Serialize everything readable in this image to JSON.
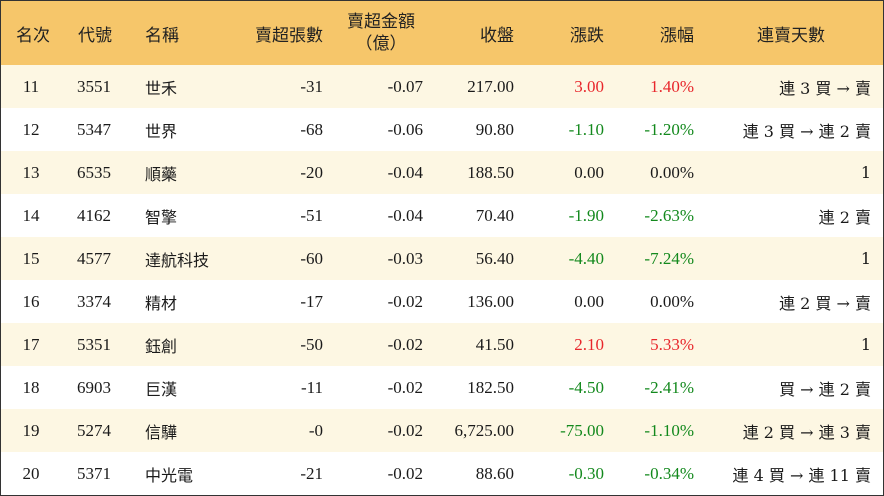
{
  "header": {
    "rank": "名次",
    "code": "代號",
    "name": "名稱",
    "sell_lots": "賣超張數",
    "sell_amount_line1": "賣超金額",
    "sell_amount_line2": "（億）",
    "close": "收盤",
    "change": "漲跌",
    "change_pct": "漲幅",
    "consecutive_days": "連賣天數"
  },
  "rows": [
    {
      "rank": "11",
      "code": "3551",
      "name": "世禾",
      "sell_lots": "-31",
      "sell_amount": "-0.07",
      "close": "217.00",
      "change": "3.00",
      "change_pct": "1.40%",
      "direction": "up",
      "consecutive": "連 3 買 → 賣"
    },
    {
      "rank": "12",
      "code": "5347",
      "name": "世界",
      "sell_lots": "-68",
      "sell_amount": "-0.06",
      "close": "90.80",
      "change": "-1.10",
      "change_pct": "-1.20%",
      "direction": "down",
      "consecutive": "連 3 買 → 連 2 賣"
    },
    {
      "rank": "13",
      "code": "6535",
      "name": "順藥",
      "sell_lots": "-20",
      "sell_amount": "-0.04",
      "close": "188.50",
      "change": "0.00",
      "change_pct": "0.00%",
      "direction": "flat",
      "consecutive": "1"
    },
    {
      "rank": "14",
      "code": "4162",
      "name": "智擎",
      "sell_lots": "-51",
      "sell_amount": "-0.04",
      "close": "70.40",
      "change": "-1.90",
      "change_pct": "-2.63%",
      "direction": "down",
      "consecutive": "連 2 賣"
    },
    {
      "rank": "15",
      "code": "4577",
      "name": "達航科技",
      "sell_lots": "-60",
      "sell_amount": "-0.03",
      "close": "56.40",
      "change": "-4.40",
      "change_pct": "-7.24%",
      "direction": "down",
      "consecutive": "1"
    },
    {
      "rank": "16",
      "code": "3374",
      "name": "精材",
      "sell_lots": "-17",
      "sell_amount": "-0.02",
      "close": "136.00",
      "change": "0.00",
      "change_pct": "0.00%",
      "direction": "flat",
      "consecutive": "連 2 買 → 賣"
    },
    {
      "rank": "17",
      "code": "5351",
      "name": "鈺創",
      "sell_lots": "-50",
      "sell_amount": "-0.02",
      "close": "41.50",
      "change": "2.10",
      "change_pct": "5.33%",
      "direction": "up",
      "consecutive": "1"
    },
    {
      "rank": "18",
      "code": "6903",
      "name": "巨漢",
      "sell_lots": "-11",
      "sell_amount": "-0.02",
      "close": "182.50",
      "change": "-4.50",
      "change_pct": "-2.41%",
      "direction": "down",
      "consecutive": "買 → 連 2 賣"
    },
    {
      "rank": "19",
      "code": "5274",
      "name": "信驊",
      "sell_lots": "-0",
      "sell_amount": "-0.02",
      "close": "6,725.00",
      "change": "-75.00",
      "change_pct": "-1.10%",
      "direction": "down",
      "consecutive": "連 2 買 → 連 3 賣"
    },
    {
      "rank": "20",
      "code": "5371",
      "name": "中光電",
      "sell_lots": "-21",
      "sell_amount": "-0.02",
      "close": "88.60",
      "change": "-0.30",
      "change_pct": "-0.34%",
      "direction": "down",
      "consecutive": "連 4 買 → 連 11 賣"
    }
  ],
  "colors": {
    "header_bg": "#f6c66a",
    "odd_row_bg": "#fdf7e3",
    "even_row_bg": "#ffffff",
    "up": "#e8262b",
    "down": "#13891d",
    "flat": "#1a1a1a"
  }
}
